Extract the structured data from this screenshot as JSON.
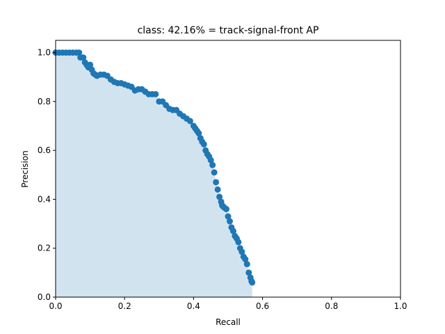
{
  "chart_data": {
    "type": "area",
    "title": "class: 42.16% = track-signal-front AP",
    "xlabel": "Recall",
    "ylabel": "Precision",
    "xlim": [
      0,
      1
    ],
    "ylim": [
      0,
      1.05
    ],
    "xticks": [
      "0.0",
      "0.2",
      "0.4",
      "0.6",
      "0.8",
      "1.0"
    ],
    "yticks": [
      "0.0",
      "0.2",
      "0.4",
      "0.6",
      "0.8",
      "1.0"
    ],
    "grid": false,
    "fill_color": "#d2e3f0",
    "marker_color": "#1f77b4",
    "series": [
      {
        "x": [
          0.0,
          0.01,
          0.02,
          0.03,
          0.04,
          0.05,
          0.06,
          0.068,
          0.072,
          0.08,
          0.085,
          0.09,
          0.095,
          0.1,
          0.105,
          0.11,
          0.115,
          0.12,
          0.13,
          0.14,
          0.15,
          0.16,
          0.17,
          0.18,
          0.19,
          0.2,
          0.21,
          0.22,
          0.23,
          0.24,
          0.25,
          0.26,
          0.27,
          0.28,
          0.29,
          0.3,
          0.31,
          0.32,
          0.33,
          0.34,
          0.35,
          0.36,
          0.37,
          0.38,
          0.39,
          0.4,
          0.405,
          0.41,
          0.415,
          0.42,
          0.425,
          0.43,
          0.435,
          0.44,
          0.445,
          0.45,
          0.455,
          0.46,
          0.465,
          0.47,
          0.475,
          0.48,
          0.483,
          0.486,
          0.49,
          0.495,
          0.5,
          0.505,
          0.51,
          0.515,
          0.52,
          0.525,
          0.53,
          0.535,
          0.54,
          0.545,
          0.55,
          0.555,
          0.56,
          0.565,
          0.568,
          0.57
        ],
        "y": [
          1.0,
          1.0,
          1.0,
          1.0,
          1.0,
          1.0,
          1.0,
          1.0,
          0.98,
          0.98,
          0.96,
          0.95,
          0.94,
          0.95,
          0.93,
          0.915,
          0.91,
          0.905,
          0.91,
          0.91,
          0.905,
          0.89,
          0.88,
          0.875,
          0.875,
          0.87,
          0.865,
          0.86,
          0.845,
          0.85,
          0.85,
          0.84,
          0.83,
          0.83,
          0.83,
          0.8,
          0.8,
          0.785,
          0.77,
          0.765,
          0.765,
          0.75,
          0.74,
          0.73,
          0.72,
          0.7,
          0.69,
          0.68,
          0.67,
          0.65,
          0.635,
          0.625,
          0.6,
          0.585,
          0.575,
          0.56,
          0.54,
          0.51,
          0.47,
          0.44,
          0.41,
          0.39,
          0.375,
          0.37,
          0.365,
          0.36,
          0.33,
          0.31,
          0.285,
          0.27,
          0.25,
          0.24,
          0.225,
          0.2,
          0.185,
          0.165,
          0.155,
          0.135,
          0.1,
          0.08,
          0.065,
          0.06
        ]
      }
    ]
  }
}
